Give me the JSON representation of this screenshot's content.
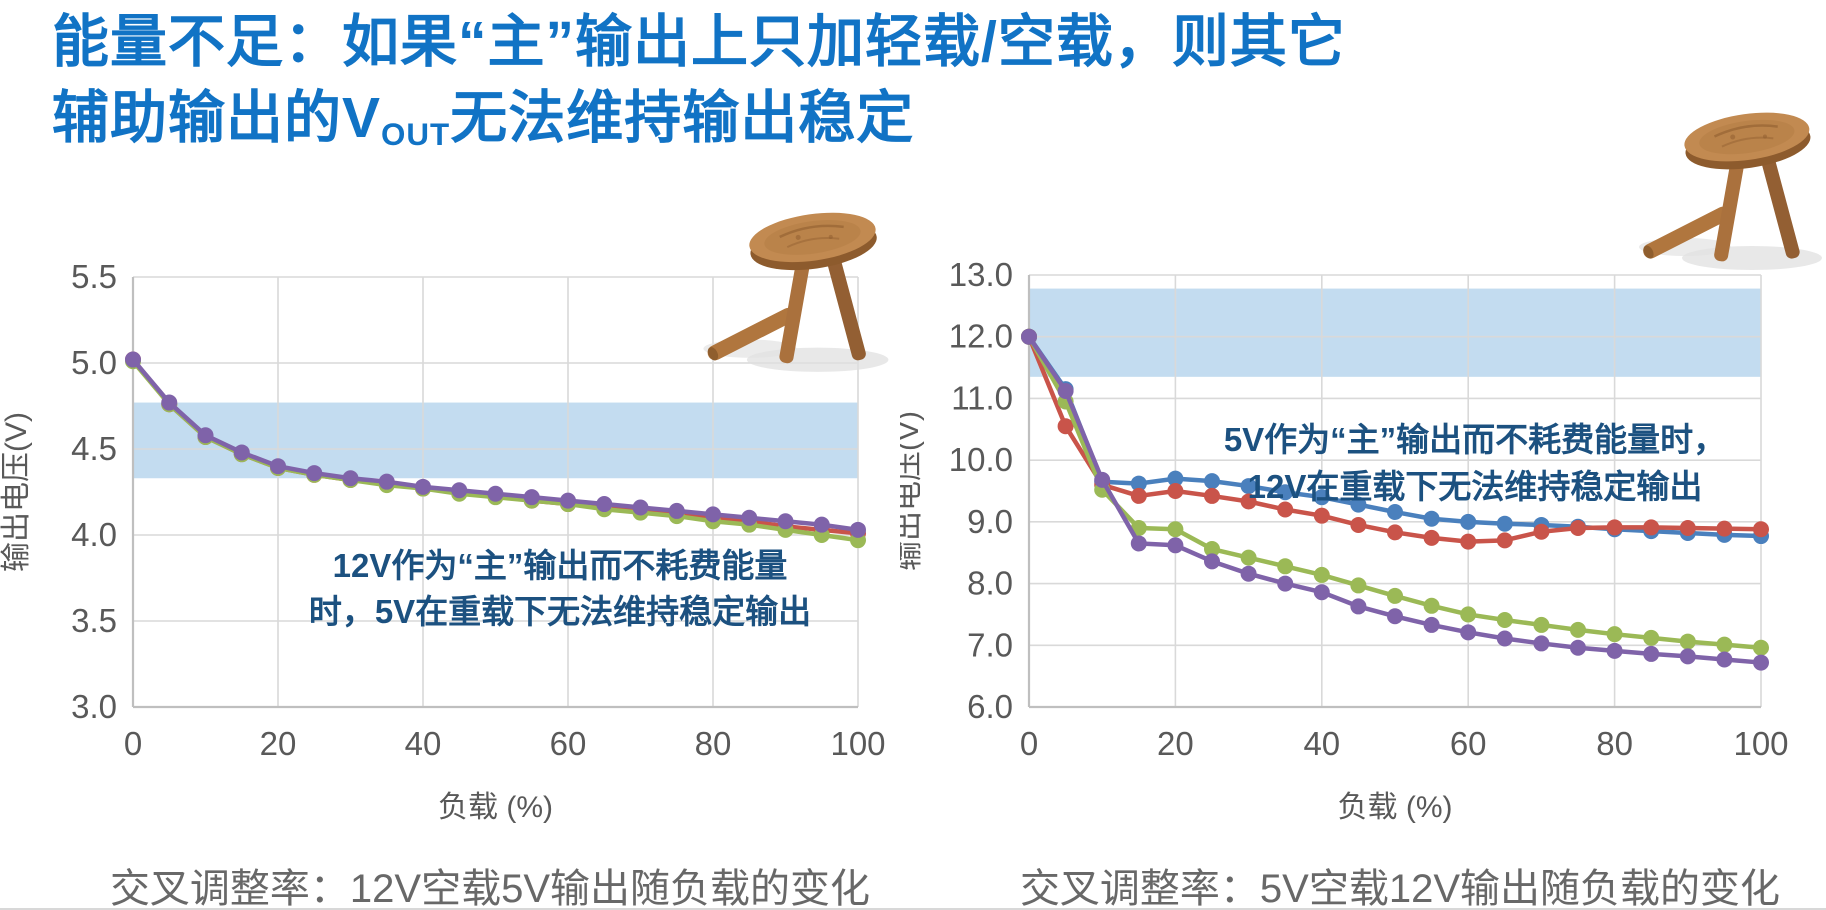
{
  "title": {
    "line1": "能量不足：如果“主”输出上只加轻载/空载，则其它",
    "line2_pre": "辅助输出的V",
    "line2_sub": "OUT",
    "line2_post": "无法维持输出稳定"
  },
  "accent_colors": {
    "title_blue": "#1173c5",
    "annotation_blue": "#1c5180",
    "caption_gray": "#686868",
    "band_blue": "#c3dcf0"
  },
  "chart_data": [
    {
      "type": "line",
      "xlabel": "负载 (%)",
      "ylabel": "输出电压(V)",
      "xlim": [
        0,
        100
      ],
      "ylim": [
        3.0,
        5.5
      ],
      "xtick_labels": [
        "0",
        "20",
        "40",
        "60",
        "80",
        "100"
      ],
      "ytick_labels": [
        "5.5",
        "5.0",
        "4.5",
        "4.0",
        "3.5",
        "3.0"
      ],
      "grid": true,
      "legend": "none",
      "spec_band": {
        "y_from": 4.33,
        "y_to": 4.77,
        "color": "#c3dcf0"
      },
      "x": [
        0,
        5,
        10,
        15,
        20,
        25,
        30,
        35,
        40,
        45,
        50,
        55,
        60,
        65,
        70,
        75,
        80,
        85,
        90,
        95,
        100
      ],
      "series": [
        {
          "name": "series-red",
          "color": "#c9544a",
          "values": [
            5.02,
            4.76,
            4.57,
            4.47,
            4.39,
            4.35,
            4.32,
            4.3,
            4.27,
            4.25,
            4.23,
            4.2,
            4.18,
            4.16,
            4.14,
            4.12,
            4.1,
            4.08,
            4.05,
            4.03,
            4.01
          ]
        },
        {
          "name": "series-green",
          "color": "#9bb956",
          "values": [
            5.01,
            4.76,
            4.57,
            4.47,
            4.39,
            4.35,
            4.32,
            4.29,
            4.27,
            4.24,
            4.22,
            4.2,
            4.18,
            4.15,
            4.13,
            4.11,
            4.08,
            4.06,
            4.03,
            4.0,
            3.97
          ]
        },
        {
          "name": "series-purple",
          "color": "#7f63a9",
          "values": [
            5.02,
            4.77,
            4.58,
            4.48,
            4.4,
            4.36,
            4.33,
            4.31,
            4.28,
            4.26,
            4.24,
            4.22,
            4.2,
            4.18,
            4.16,
            4.14,
            4.12,
            4.1,
            4.08,
            4.06,
            4.03
          ]
        }
      ],
      "annotation": {
        "line1": "12V作为“主”输出而不耗费能量",
        "line2": "时，5V在重载下无法维持稳定输出"
      },
      "caption": "交叉调整率：12V空载5V输出随负载的变化"
    },
    {
      "type": "line",
      "xlabel": "负载 (%)",
      "ylabel": "输出电压(V)",
      "xlim": [
        0,
        100
      ],
      "ylim": [
        6.0,
        13.0
      ],
      "xtick_labels": [
        "0",
        "20",
        "40",
        "60",
        "80",
        "100"
      ],
      "ytick_labels": [
        "13.0",
        "12.0",
        "11.0",
        "10.0",
        "9.0",
        "8.0",
        "7.0",
        "6.0"
      ],
      "grid": true,
      "legend": "none",
      "spec_band": {
        "y_from": 11.35,
        "y_to": 12.78,
        "color": "#c3dcf0"
      },
      "x": [
        0,
        5,
        10,
        15,
        20,
        25,
        30,
        35,
        40,
        45,
        50,
        55,
        60,
        65,
        70,
        75,
        80,
        85,
        90,
        95,
        100
      ],
      "series": [
        {
          "name": "series-blue",
          "color": "#4a80bd",
          "values": [
            12.0,
            11.15,
            9.65,
            9.62,
            9.7,
            9.66,
            9.58,
            9.48,
            9.4,
            9.28,
            9.16,
            9.05,
            9.0,
            8.97,
            8.95,
            8.92,
            8.88,
            8.85,
            8.82,
            8.79,
            8.77
          ]
        },
        {
          "name": "series-red",
          "color": "#c9544a",
          "values": [
            12.0,
            10.55,
            9.6,
            9.42,
            9.5,
            9.42,
            9.33,
            9.2,
            9.1,
            8.95,
            8.83,
            8.74,
            8.68,
            8.7,
            8.84,
            8.9,
            8.91,
            8.91,
            8.9,
            8.89,
            8.88
          ]
        },
        {
          "name": "series-green",
          "color": "#9bb956",
          "values": [
            12.0,
            10.95,
            9.52,
            8.9,
            8.88,
            8.56,
            8.42,
            8.28,
            8.14,
            7.97,
            7.8,
            7.64,
            7.5,
            7.41,
            7.33,
            7.25,
            7.18,
            7.12,
            7.06,
            7.01,
            6.96
          ]
        },
        {
          "name": "series-purple",
          "color": "#7f63a9",
          "values": [
            12.0,
            11.12,
            9.68,
            8.65,
            8.62,
            8.36,
            8.16,
            8.0,
            7.86,
            7.63,
            7.47,
            7.33,
            7.21,
            7.11,
            7.03,
            6.96,
            6.91,
            6.86,
            6.82,
            6.77,
            6.72
          ]
        }
      ],
      "annotation": {
        "line1": "5V作为“主”输出而不耗费能量时，",
        "line2": "12V在重载下无法维持稳定输出"
      },
      "caption": "交叉调整率：5V空载12V输出随负载的变化"
    }
  ]
}
